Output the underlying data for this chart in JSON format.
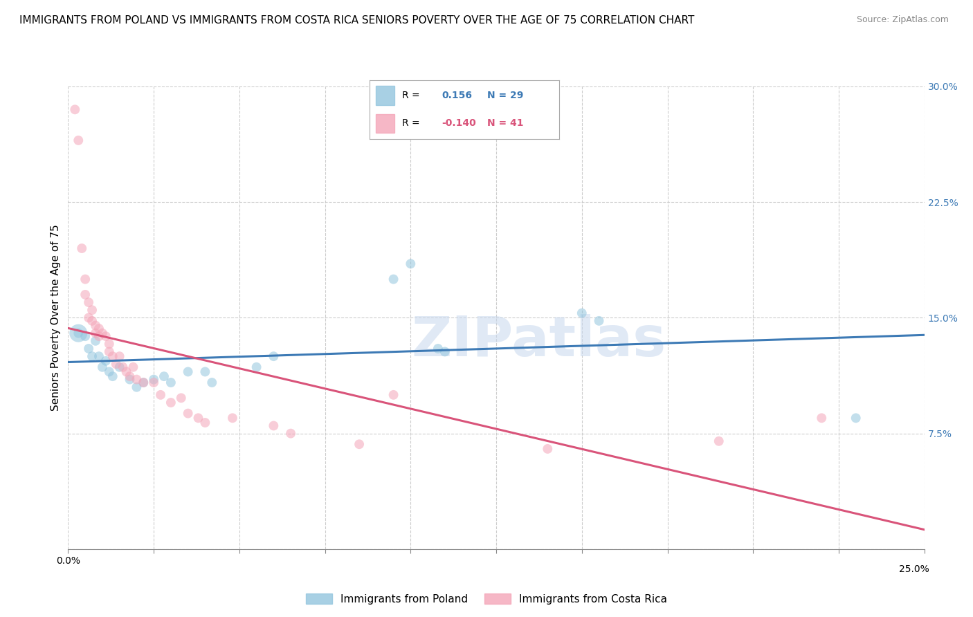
{
  "title": "IMMIGRANTS FROM POLAND VS IMMIGRANTS FROM COSTA RICA SENIORS POVERTY OVER THE AGE OF 75 CORRELATION CHART",
  "source": "Source: ZipAtlas.com",
  "ylabel": "Seniors Poverty Over the Age of 75",
  "xlim": [
    0.0,
    0.25
  ],
  "ylim": [
    0.0,
    0.3
  ],
  "xticks": [
    0.0,
    0.025,
    0.05,
    0.075,
    0.1,
    0.125,
    0.15,
    0.175,
    0.2,
    0.225,
    0.25
  ],
  "yticks": [
    0.0,
    0.075,
    0.15,
    0.225,
    0.3
  ],
  "poland_R": 0.156,
  "poland_N": 29,
  "costa_rica_R": -0.14,
  "costa_rica_N": 41,
  "poland_color": "#92c5de",
  "costa_rica_color": "#f4a5b8",
  "poland_line_color": "#3d7ab5",
  "costa_rica_line_color": "#d9547a",
  "watermark": "ZIPatlas",
  "poland_points": [
    [
      0.003,
      0.14
    ],
    [
      0.005,
      0.138
    ],
    [
      0.006,
      0.13
    ],
    [
      0.007,
      0.125
    ],
    [
      0.008,
      0.135
    ],
    [
      0.009,
      0.125
    ],
    [
      0.01,
      0.118
    ],
    [
      0.011,
      0.122
    ],
    [
      0.012,
      0.115
    ],
    [
      0.013,
      0.112
    ],
    [
      0.015,
      0.118
    ],
    [
      0.018,
      0.11
    ],
    [
      0.02,
      0.105
    ],
    [
      0.022,
      0.108
    ],
    [
      0.025,
      0.11
    ],
    [
      0.028,
      0.112
    ],
    [
      0.03,
      0.108
    ],
    [
      0.035,
      0.115
    ],
    [
      0.04,
      0.115
    ],
    [
      0.042,
      0.108
    ],
    [
      0.055,
      0.118
    ],
    [
      0.06,
      0.125
    ],
    [
      0.095,
      0.175
    ],
    [
      0.1,
      0.185
    ],
    [
      0.108,
      0.13
    ],
    [
      0.11,
      0.128
    ],
    [
      0.15,
      0.153
    ],
    [
      0.155,
      0.148
    ],
    [
      0.23,
      0.085
    ]
  ],
  "costa_rica_points": [
    [
      0.002,
      0.285
    ],
    [
      0.003,
      0.265
    ],
    [
      0.004,
      0.195
    ],
    [
      0.005,
      0.175
    ],
    [
      0.005,
      0.165
    ],
    [
      0.006,
      0.16
    ],
    [
      0.006,
      0.15
    ],
    [
      0.007,
      0.155
    ],
    [
      0.007,
      0.148
    ],
    [
      0.008,
      0.145
    ],
    [
      0.008,
      0.14
    ],
    [
      0.009,
      0.143
    ],
    [
      0.009,
      0.138
    ],
    [
      0.01,
      0.14
    ],
    [
      0.011,
      0.138
    ],
    [
      0.012,
      0.133
    ],
    [
      0.012,
      0.128
    ],
    [
      0.013,
      0.125
    ],
    [
      0.014,
      0.12
    ],
    [
      0.015,
      0.125
    ],
    [
      0.016,
      0.118
    ],
    [
      0.017,
      0.115
    ],
    [
      0.018,
      0.112
    ],
    [
      0.019,
      0.118
    ],
    [
      0.02,
      0.11
    ],
    [
      0.022,
      0.108
    ],
    [
      0.025,
      0.108
    ],
    [
      0.027,
      0.1
    ],
    [
      0.03,
      0.095
    ],
    [
      0.033,
      0.098
    ],
    [
      0.035,
      0.088
    ],
    [
      0.038,
      0.085
    ],
    [
      0.04,
      0.082
    ],
    [
      0.048,
      0.085
    ],
    [
      0.06,
      0.08
    ],
    [
      0.065,
      0.075
    ],
    [
      0.085,
      0.068
    ],
    [
      0.095,
      0.1
    ],
    [
      0.14,
      0.065
    ],
    [
      0.19,
      0.07
    ],
    [
      0.22,
      0.085
    ]
  ],
  "background_color": "#ffffff",
  "grid_color": "#cccccc",
  "title_fontsize": 11,
  "axis_label_fontsize": 11,
  "tick_fontsize": 10,
  "marker_size": 100,
  "marker_size_large": 350,
  "alpha": 0.55
}
